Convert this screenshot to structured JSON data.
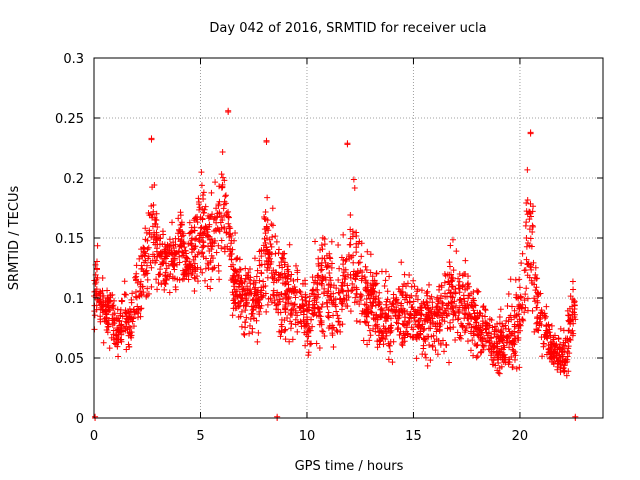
{
  "chart_data": {
    "type": "scatter",
    "title": "Day 042 of 2016, SRMTID for receiver ucla",
    "xlabel": "GPS time / hours",
    "ylabel": "SRMTID / TECUs",
    "xlim": [
      0,
      23.9
    ],
    "ylim": [
      0,
      0.3
    ],
    "x_ticks": [
      0,
      5,
      10,
      15,
      20
    ],
    "x_tick_labels": [
      "0",
      "5",
      "10",
      "15",
      "20"
    ],
    "y_ticks": [
      0,
      0.05,
      0.1,
      0.15,
      0.2,
      0.25,
      0.3
    ],
    "y_tick_labels": [
      "0",
      "0.05",
      "0.1",
      "0.15",
      "0.2",
      "0.25",
      "0.3"
    ],
    "grid": true,
    "series": [
      {
        "name": "SRMTID",
        "marker": "plus",
        "color": "#ff0000",
        "x": [
          0.0,
          0.1,
          0.15,
          0.2,
          0.25,
          0.3,
          0.4,
          0.5,
          0.6,
          0.7,
          0.8,
          0.9,
          1.0,
          1.1,
          1.2,
          1.3,
          1.4,
          1.5,
          1.6,
          1.7,
          1.8,
          1.9,
          2.0,
          2.1,
          2.2,
          2.3,
          2.4,
          2.5,
          2.6,
          2.7,
          2.8,
          2.9,
          3.0,
          3.1,
          3.2,
          3.3,
          3.4,
          3.5,
          3.6,
          3.7,
          3.8,
          3.9,
          4.0,
          4.1,
          4.2,
          4.3,
          4.4,
          4.5,
          4.6,
          4.7,
          4.8,
          4.9,
          5.0,
          5.1,
          5.2,
          5.3,
          5.4,
          5.5,
          5.6,
          5.7,
          5.8,
          5.9,
          6.0,
          6.1,
          6.2,
          6.3,
          6.4,
          6.5,
          6.6,
          6.7,
          6.8,
          6.9,
          7.0,
          7.2,
          7.4,
          7.6,
          7.8,
          8.0,
          8.2,
          8.4,
          8.6,
          8.8,
          9.0,
          9.2,
          9.4,
          9.6,
          9.8,
          10.0,
          10.2,
          10.4,
          10.6,
          10.8,
          11.0,
          11.2,
          11.4,
          11.6,
          11.8,
          12.0,
          12.2,
          12.4,
          12.6,
          12.8,
          13.0,
          13.2,
          13.4,
          13.6,
          13.8,
          14.0,
          14.2,
          14.4,
          14.6,
          14.8,
          15.0,
          15.2,
          15.4,
          15.6,
          15.8,
          16.0,
          16.2,
          16.4,
          16.6,
          16.8,
          17.0,
          17.2,
          17.4,
          17.6,
          17.8,
          18.0,
          18.2,
          18.4,
          18.6,
          18.8,
          19.0,
          19.2,
          19.4,
          19.6,
          19.8,
          20.0,
          20.2,
          20.4,
          20.6,
          20.8,
          21.0,
          21.2,
          21.4,
          21.6,
          21.8,
          22.0,
          22.2,
          22.4,
          22.6,
          22.8,
          23.0
        ],
        "envelope_low": [
          0.06,
          0.07,
          0.08,
          0.06,
          0.07,
          0.06,
          0.06,
          0.06,
          0.06,
          0.05,
          0.05,
          0.05,
          0.04,
          0.045,
          0.05,
          0.05,
          0.05,
          0.05,
          0.045,
          0.05,
          0.06,
          0.06,
          0.07,
          0.07,
          0.07,
          0.08,
          0.08,
          0.08,
          0.085,
          0.09,
          0.09,
          0.09,
          0.09,
          0.09,
          0.09,
          0.09,
          0.09,
          0.09,
          0.09,
          0.09,
          0.09,
          0.09,
          0.1,
          0.1,
          0.1,
          0.1,
          0.1,
          0.1,
          0.09,
          0.09,
          0.09,
          0.09,
          0.1,
          0.1,
          0.1,
          0.1,
          0.09,
          0.09,
          0.09,
          0.09,
          0.1,
          0.1,
          0.11,
          0.12,
          0.12,
          0.12,
          0.1,
          0.08,
          0.07,
          0.06,
          0.06,
          0.06,
          0.06,
          0.06,
          0.06,
          0.06,
          0.06,
          0.07,
          0.06,
          0.06,
          0.05,
          0.05,
          0.05,
          0.05,
          0.05,
          0.05,
          0.05,
          0.04,
          0.04,
          0.05,
          0.05,
          0.05,
          0.05,
          0.05,
          0.05,
          0.05,
          0.05,
          0.05,
          0.05,
          0.05,
          0.05,
          0.05,
          0.05,
          0.05,
          0.04,
          0.04,
          0.04,
          0.04,
          0.04,
          0.04,
          0.04,
          0.04,
          0.04,
          0.04,
          0.04,
          0.04,
          0.04,
          0.04,
          0.04,
          0.04,
          0.04,
          0.04,
          0.04,
          0.04,
          0.04,
          0.04,
          0.04,
          0.04,
          0.04,
          0.04,
          0.03,
          0.03,
          0.02,
          0.02,
          0.02,
          0.02,
          0.02,
          0.03,
          0.05,
          0.06,
          0.06,
          0.05,
          0.04,
          0.03,
          0.03,
          0.03,
          0.03,
          0.02,
          0.02,
          0.05,
          0.06
        ],
        "envelope_high": [
          0.13,
          0.15,
          0.16,
          0.15,
          0.14,
          0.13,
          0.12,
          0.11,
          0.12,
          0.12,
          0.13,
          0.12,
          0.11,
          0.1,
          0.1,
          0.11,
          0.12,
          0.14,
          0.12,
          0.11,
          0.12,
          0.13,
          0.14,
          0.14,
          0.15,
          0.16,
          0.17,
          0.18,
          0.2,
          0.23,
          0.22,
          0.2,
          0.19,
          0.18,
          0.17,
          0.17,
          0.16,
          0.17,
          0.18,
          0.17,
          0.17,
          0.18,
          0.19,
          0.18,
          0.17,
          0.16,
          0.17,
          0.18,
          0.19,
          0.2,
          0.2,
          0.21,
          0.22,
          0.23,
          0.21,
          0.2,
          0.19,
          0.2,
          0.21,
          0.22,
          0.23,
          0.24,
          0.255,
          0.24,
          0.22,
          0.2,
          0.18,
          0.16,
          0.16,
          0.15,
          0.15,
          0.15,
          0.14,
          0.14,
          0.14,
          0.14,
          0.15,
          0.2,
          0.22,
          0.2,
          0.18,
          0.17,
          0.16,
          0.16,
          0.15,
          0.15,
          0.14,
          0.13,
          0.14,
          0.16,
          0.17,
          0.17,
          0.16,
          0.16,
          0.15,
          0.16,
          0.17,
          0.22,
          0.23,
          0.2,
          0.16,
          0.15,
          0.14,
          0.14,
          0.13,
          0.13,
          0.13,
          0.13,
          0.13,
          0.14,
          0.14,
          0.13,
          0.13,
          0.12,
          0.12,
          0.12,
          0.12,
          0.12,
          0.13,
          0.14,
          0.15,
          0.17,
          0.16,
          0.15,
          0.15,
          0.14,
          0.13,
          0.12,
          0.11,
          0.11,
          0.1,
          0.09,
          0.09,
          0.1,
          0.11,
          0.12,
          0.12,
          0.14,
          0.2,
          0.24,
          0.2,
          0.14,
          0.12,
          0.1,
          0.09,
          0.08,
          0.08,
          0.08,
          0.09,
          0.12,
          0.13
        ],
        "outlier_points": [
          [
            0.05,
            0.0
          ],
          [
            8.6,
            0.0
          ],
          [
            22.6,
            0.0
          ],
          [
            6.3,
            0.255
          ],
          [
            20.5,
            0.237
          ],
          [
            2.7,
            0.232
          ],
          [
            8.1,
            0.23
          ],
          [
            11.9,
            0.228
          ]
        ]
      }
    ]
  }
}
